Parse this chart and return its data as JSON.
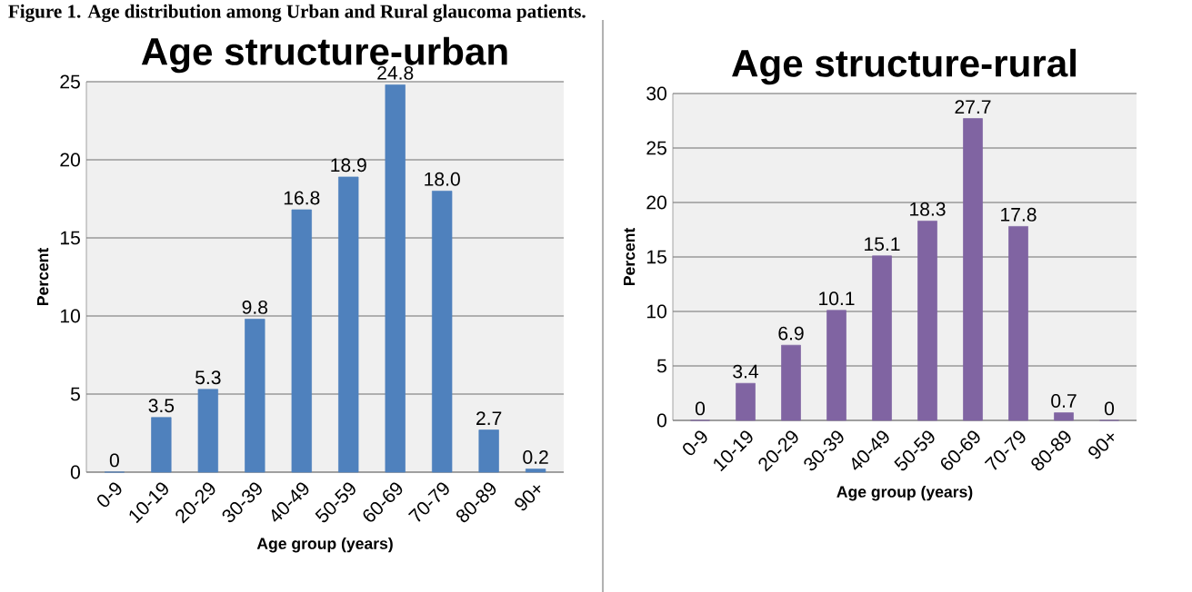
{
  "chart_data": [
    {
      "type": "bar",
      "title": "Age structure-urban",
      "xlabel": "Age group (years)",
      "ylabel": "Percent",
      "categories": [
        "0-9",
        "10-19",
        "20-29",
        "30-39",
        "40-49",
        "50-59",
        "60-69",
        "70-79",
        "80-89",
        "90+"
      ],
      "values": [
        0,
        3.5,
        5.3,
        9.8,
        16.8,
        18.9,
        24.8,
        18.0,
        2.7,
        0.2
      ],
      "value_labels": [
        "0",
        "3.5",
        "5.3",
        "9.8",
        "16.8",
        "18.9",
        "24.8",
        "18.0",
        "2.7",
        "0.2"
      ],
      "color": "#4f81bd",
      "ylim": [
        0,
        25
      ],
      "yticks": [
        0,
        5,
        10,
        15,
        20,
        25
      ],
      "grid": "y",
      "annotations": [
        "Figure 1. Age distribution among Urban and Rural glaucoma patients."
      ]
    },
    {
      "type": "bar",
      "title": "Age structure-rural",
      "xlabel": "Age group (years)",
      "ylabel": "Percent",
      "categories": [
        "0-9",
        "10-19",
        "20-29",
        "30-39",
        "40-49",
        "50-59",
        "60-69",
        "70-79",
        "80-89",
        "90+"
      ],
      "values": [
        0,
        3.4,
        6.9,
        10.1,
        15.1,
        18.3,
        27.7,
        17.8,
        0.7,
        0
      ],
      "value_labels": [
        "0",
        "3.4",
        "6.9",
        "10.1",
        "15.1",
        "18.3",
        "27.7",
        "17.8",
        "0.7",
        "0"
      ],
      "color": "#8064a2",
      "ylim": [
        0,
        30
      ],
      "yticks": [
        0,
        5,
        10,
        15,
        20,
        25,
        30
      ],
      "grid": "y"
    }
  ]
}
